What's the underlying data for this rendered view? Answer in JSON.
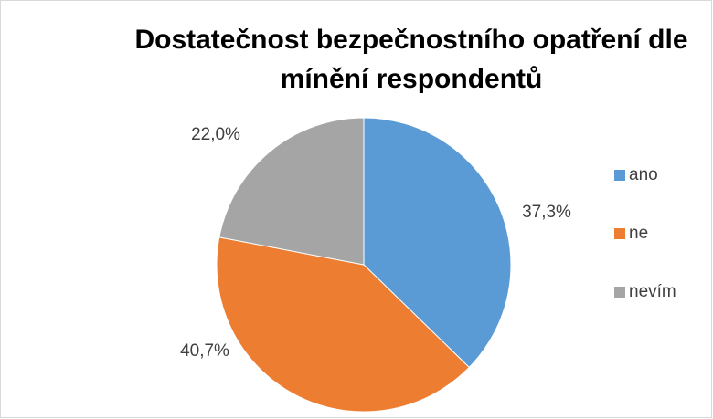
{
  "chart_data": {
    "type": "pie",
    "title": "Dostatečnost bezpečnostního opatření dle mínění respondentů",
    "categories": [
      "ano",
      "ne",
      "nevím"
    ],
    "values": [
      37.3,
      40.7,
      22.0
    ],
    "value_labels": [
      "37,3%",
      "40,7%",
      "22,0%"
    ],
    "colors": [
      "#5b9bd5",
      "#ed7d31",
      "#a5a5a5"
    ],
    "legend": "right"
  }
}
